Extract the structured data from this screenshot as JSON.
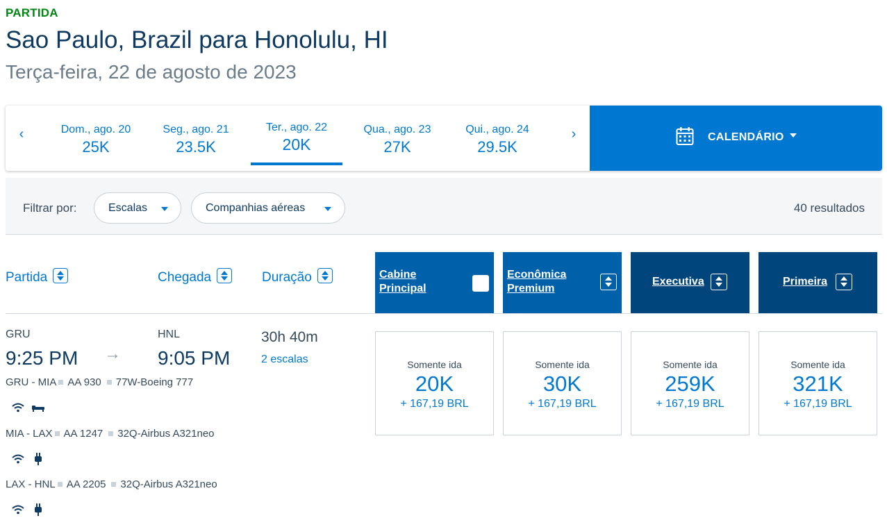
{
  "header": {
    "direction_label": "PARTIDA",
    "route_title": "Sao Paulo, Brazil para Honolulu, HI",
    "route_date": "Terça-feira, 22 de agosto de 2023"
  },
  "date_strip": {
    "days": [
      {
        "label": "Dom., ago. 20",
        "price": "25K",
        "selected": false
      },
      {
        "label": "Seg., ago. 21",
        "price": "23.5K",
        "selected": false
      },
      {
        "label": "Ter., ago. 22",
        "price": "20K",
        "selected": true
      },
      {
        "label": "Qua., ago. 23",
        "price": "27K",
        "selected": false
      },
      {
        "label": "Qui., ago. 24",
        "price": "29.5K",
        "selected": false
      }
    ],
    "prev_arrow": "‹",
    "next_arrow": "›",
    "calendar_label": "CALENDÁRIO"
  },
  "filters": {
    "label": "Filtrar por:",
    "stops_label": "Escalas",
    "airlines_label": "Companhias aéreas",
    "results_count": "40 resultados"
  },
  "columns": {
    "departure": "Partida",
    "arrival": "Chegada",
    "duration": "Duração",
    "cabins": [
      {
        "line1": "Cabine",
        "line2": "Principal"
      },
      {
        "line1": "Econômica",
        "line2": "Premium"
      },
      {
        "line1": "Executiva",
        "line2": ""
      },
      {
        "line1": "Primeira",
        "line2": ""
      }
    ]
  },
  "flight": {
    "origin": "GRU",
    "destination": "HNL",
    "depart_time": "9:25 PM",
    "arrive_time": "9:05 PM",
    "duration": "30h 40m",
    "stops": "2 escalas",
    "segments": [
      {
        "route": "GRU - MIA",
        "flight": "AA 930",
        "aircraft": "77W-Boeing 777",
        "amenities": [
          "wifi-icon",
          "flat-bed-icon"
        ]
      },
      {
        "route": "MIA - LAX",
        "flight": "AA 1247",
        "aircraft": "32Q-Airbus A321neo",
        "amenities": [
          "wifi-icon",
          "power-plug-icon"
        ]
      },
      {
        "route": "LAX - HNL",
        "flight": "AA 2205",
        "aircraft": "32Q-Airbus A321neo",
        "amenities": [
          "wifi-icon",
          "power-plug-icon"
        ]
      }
    ],
    "fares": [
      {
        "type": "Somente ida",
        "miles": "20K",
        "tax": "+ 167,19 BRL"
      },
      {
        "type": "Somente ida",
        "miles": "30K",
        "tax": "+ 167,19 BRL"
      },
      {
        "type": "Somente ida",
        "miles": "259K",
        "tax": "+ 167,19 BRL"
      },
      {
        "type": "Somente ida",
        "miles": "321K",
        "tax": "+ 167,19 BRL"
      }
    ]
  },
  "colors": {
    "accent": "#0078d2",
    "brand_dark": "#00457c",
    "brand_mid": "#0061ab",
    "departure_label": "#008712",
    "title": "#0e3960"
  }
}
